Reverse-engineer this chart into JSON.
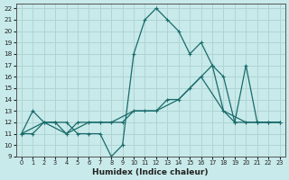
{
  "xlabel": "Humidex (Indice chaleur)",
  "bg_color": "#c8eaea",
  "grid_color": "#b0d4d4",
  "line_color": "#1a6b6b",
  "xlim": [
    -0.5,
    23.5
  ],
  "ylim": [
    9,
    22.4
  ],
  "xticks": [
    0,
    1,
    2,
    3,
    4,
    5,
    6,
    7,
    8,
    9,
    10,
    11,
    12,
    13,
    14,
    15,
    16,
    17,
    18,
    19,
    20,
    21,
    22,
    23
  ],
  "yticks": [
    9,
    10,
    11,
    12,
    13,
    14,
    15,
    16,
    17,
    18,
    19,
    20,
    21,
    22
  ],
  "line1_x": [
    0,
    1,
    2,
    3,
    4,
    5,
    6,
    7,
    8,
    9,
    10,
    11,
    12,
    13,
    14,
    15,
    16,
    17,
    18,
    19,
    20,
    21,
    22,
    23
  ],
  "line1_y": [
    11,
    13,
    12,
    12,
    12,
    11,
    11,
    11,
    9,
    10,
    18,
    21,
    22,
    21,
    20,
    18,
    19,
    17,
    13,
    12,
    12,
    12,
    12,
    12
  ],
  "line2_x": [
    0,
    1,
    2,
    3,
    4,
    5,
    6,
    7,
    8,
    9,
    10,
    11,
    12,
    13,
    14,
    15,
    16,
    17,
    18,
    19,
    20,
    21,
    22,
    23
  ],
  "line2_y": [
    11,
    11,
    12,
    12,
    11,
    12,
    12,
    12,
    12,
    12,
    13,
    13,
    13,
    14,
    14,
    15,
    16,
    17,
    16,
    12,
    17,
    12,
    12,
    12
  ],
  "line3_x": [
    0,
    2,
    4,
    6,
    8,
    10,
    12,
    14,
    16,
    18,
    20,
    22,
    23
  ],
  "line3_y": [
    11,
    12,
    11,
    12,
    12,
    13,
    13,
    14,
    16,
    13,
    12,
    12,
    12
  ]
}
